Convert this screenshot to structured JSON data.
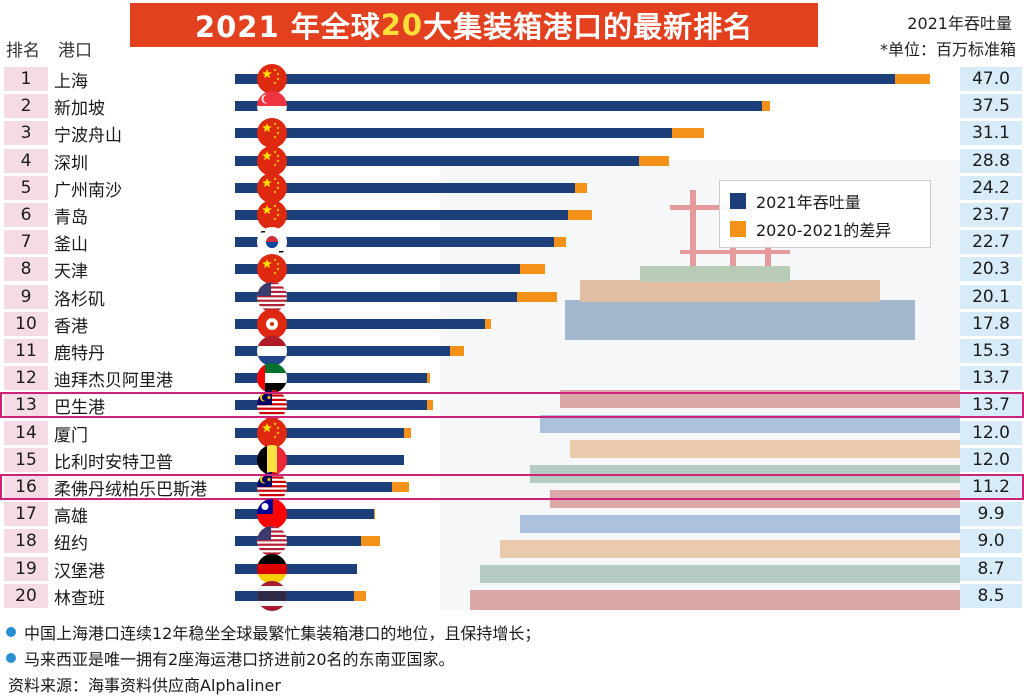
{
  "header": {
    "title_part1": "2021 年全球 ",
    "title_highlight": "20",
    "title_part2": " 大集装箱港口的最新排名",
    "col_rank": "排名",
    "col_port": "港口",
    "unit_line1": "2021年吞吐量",
    "unit_line2": "*单位：百万标准箱"
  },
  "legend": {
    "items": [
      {
        "label": "2021年吞吐量",
        "color": "#1c3f7a"
      },
      {
        "label": "2020-2021的差异",
        "color": "#f39119"
      }
    ]
  },
  "chart_data": {
    "type": "bar",
    "orientation": "horizontal",
    "title": "2021 年全球 20 大集装箱港口的最新排名",
    "value_label": "2021年吞吐量 (百万标准箱)",
    "series": [
      {
        "name": "2021年吞吐量",
        "color": "#1c3f7a"
      },
      {
        "name": "2020-2021的差异",
        "color": "#f39119"
      }
    ],
    "rows": [
      {
        "rank": "1",
        "port": "上海",
        "value": "47.0",
        "diff": 2.5,
        "flag": "china-flag-icon"
      },
      {
        "rank": "2",
        "port": "新加坡",
        "value": "37.5",
        "diff": 0.6,
        "flag": "singapore-flag-icon"
      },
      {
        "rank": "3",
        "port": "宁波舟山",
        "value": "31.1",
        "diff": 2.3,
        "flag": "china-flag-icon"
      },
      {
        "rank": "4",
        "port": "深圳",
        "value": "28.8",
        "diff": 2.1,
        "flag": "china-flag-icon"
      },
      {
        "rank": "5",
        "port": "广州南沙",
        "value": "24.2",
        "diff": 0.9,
        "flag": "china-flag-icon"
      },
      {
        "rank": "6",
        "port": "青岛",
        "value": "23.7",
        "diff": 1.7,
        "flag": "china-flag-icon"
      },
      {
        "rank": "7",
        "port": "釜山",
        "value": "22.7",
        "diff": 0.9,
        "flag": "south-korea-flag-icon"
      },
      {
        "rank": "8",
        "port": "天津",
        "value": "20.3",
        "diff": 1.8,
        "flag": "china-flag-icon"
      },
      {
        "rank": "9",
        "port": "洛杉矶",
        "value": "20.1",
        "diff": 2.8,
        "flag": "usa-flag-icon"
      },
      {
        "rank": "10",
        "port": "香港",
        "value": "17.8",
        "diff": 0.4,
        "flag": "hong-kong-flag-icon"
      },
      {
        "rank": "11",
        "port": "鹿特丹",
        "value": "15.3",
        "diff": 1.0,
        "flag": "netherlands-flag-icon"
      },
      {
        "rank": "12",
        "port": "迪拜杰贝阿里港",
        "value": "13.7",
        "diff": 0.2,
        "flag": "uae-flag-icon"
      },
      {
        "rank": "13",
        "port": "巴生港",
        "value": "13.7",
        "diff": 0.4,
        "flag": "malaysia-flag-icon"
      },
      {
        "rank": "14",
        "port": "厦门",
        "value": "12.0",
        "diff": 0.5,
        "flag": "china-flag-icon"
      },
      {
        "rank": "15",
        "port": "比利时安特卫普",
        "value": "12.0",
        "diff": 0.0,
        "flag": "belgium-flag-icon"
      },
      {
        "rank": "16",
        "port": "柔佛丹绒柏乐巴斯港",
        "value": "11.2",
        "diff": 1.2,
        "flag": "malaysia-flag-icon"
      },
      {
        "rank": "17",
        "port": "高雄",
        "value": "9.9",
        "diff": 0.1,
        "flag": "taiwan-flag-icon"
      },
      {
        "rank": "18",
        "port": "纽约",
        "value": "9.0",
        "diff": 1.3,
        "flag": "usa-flag-icon"
      },
      {
        "rank": "19",
        "port": "汉堡港",
        "value": "8.7",
        "diff": 0.0,
        "flag": "germany-flag-icon"
      },
      {
        "rank": "20",
        "port": "林查班",
        "value": "8.5",
        "diff": 0.8,
        "flag": "thailand-flag-icon"
      }
    ],
    "highlighted_ranks": [
      "13",
      "16"
    ]
  },
  "notes": [
    "中国上海港口连续12年稳坐全球最繁忙集装箱港口的地位，且保持增长；",
    "马来西亚是唯一拥有2座海运港口挤进前20名的东南亚国家。"
  ],
  "source": "资料来源：海事资料供应商Alphaliner"
}
